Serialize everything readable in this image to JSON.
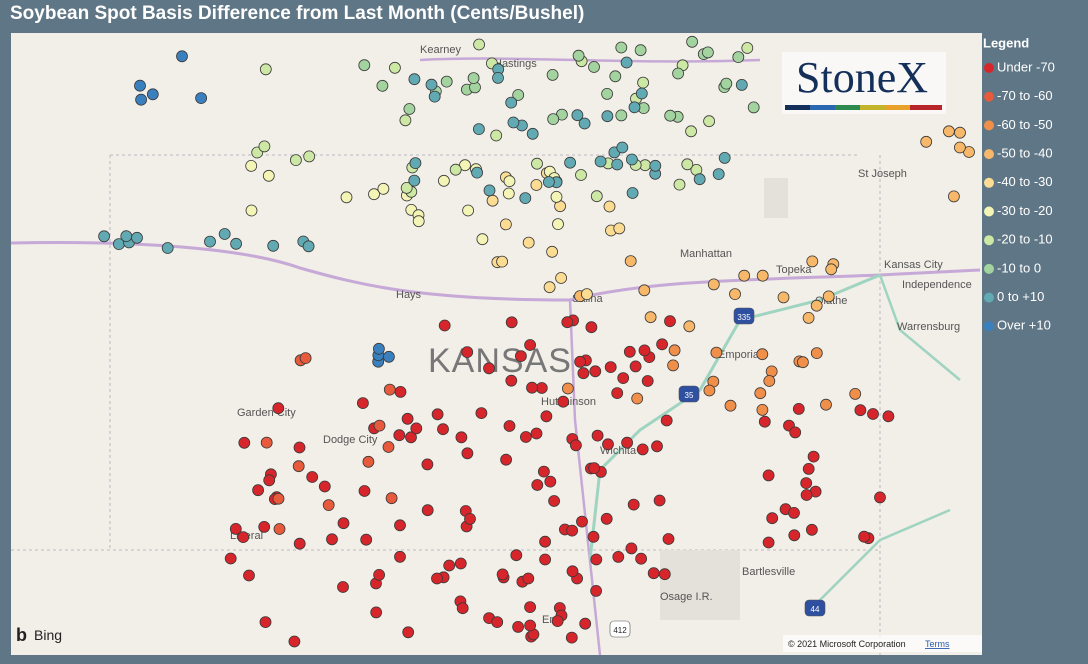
{
  "header": {
    "title": "Soybean Spot Basis Difference from Last Month (Cents/Bushel)"
  },
  "legend": {
    "title": "Legend",
    "items": [
      {
        "label": "Under -70",
        "color": "#d7262b"
      },
      {
        "label": "-70 to -60",
        "color": "#e75a3b"
      },
      {
        "label": "-60 to -50",
        "color": "#f08f4a"
      },
      {
        "label": "-50 to -40",
        "color": "#f7b86a"
      },
      {
        "label": "-40 to -30",
        "color": "#fbdc92"
      },
      {
        "label": "-30 to -20",
        "color": "#f3f4b6"
      },
      {
        "label": "-20 to -10",
        "color": "#cce8a4"
      },
      {
        "label": "-10 to 0",
        "color": "#a3d39f"
      },
      {
        "label": "0 to +10",
        "color": "#62aab3"
      },
      {
        "label": "Over +10",
        "color": "#3a80bf"
      }
    ]
  },
  "logo": {
    "text": "StoneX"
  },
  "map": {
    "state_label": "KANSAS",
    "cities": [
      "Kearney",
      "Hastings",
      "St Joseph",
      "Manhattan",
      "Topeka",
      "Kansas City",
      "Independence",
      "Olathe",
      "Warrensburg",
      "Hays",
      "Salina",
      "Emporia",
      "Garden City",
      "Hutchinson",
      "Dodge City",
      "Wichita",
      "Liberal",
      "Bartlesville",
      "Osage I.R.",
      "Enid"
    ],
    "highways": [
      "335",
      "35",
      "44",
      "412"
    ]
  },
  "footer": {
    "provider": "Bing",
    "copyright": "© 2021 Microsoft Corporation",
    "terms": "Terms"
  }
}
